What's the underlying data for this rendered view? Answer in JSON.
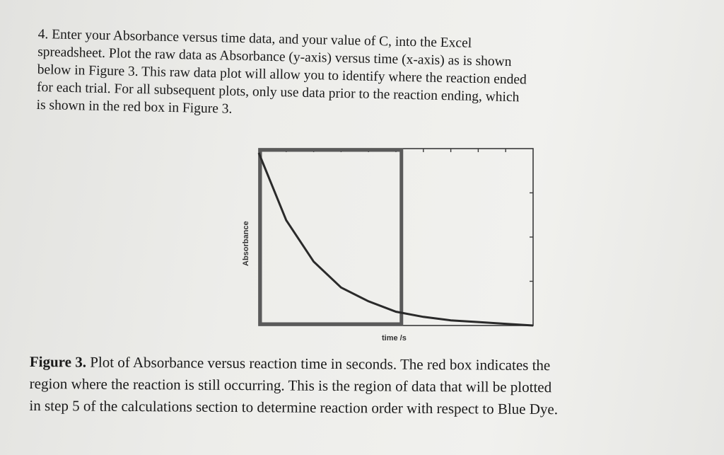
{
  "instructions": {
    "line1": "4. Enter your Absorbance versus time data, and your value of C, into the Excel",
    "line2": "spreadsheet. Plot the raw data as Absorbance (y-axis) versus time (x-axis) as is shown",
    "line3": "below in Figure 3. This raw data plot will allow you to identify where the reaction ended",
    "line4": "for each trial. For all subsequent plots, only use data prior to the reaction ending, which",
    "line5": "is shown in the red box in Figure 3."
  },
  "figure": {
    "ylabel": "Absorbance",
    "xlabel": "time /s",
    "colors": {
      "curve": "#2a2a2a",
      "highlight_box": "#5a5a5a",
      "axes": "#3a3a3a"
    }
  },
  "chart_data": {
    "type": "line",
    "title": "",
    "xlabel": "time /s",
    "ylabel": "Absorbance",
    "series": [
      {
        "x": [
          0,
          0.1,
          0.2,
          0.3,
          0.4,
          0.5,
          0.6,
          0.7,
          0.8,
          0.9,
          1.0
        ],
        "y": [
          1.0,
          0.61,
          0.37,
          0.22,
          0.14,
          0.08,
          0.05,
          0.03,
          0.02,
          0.01,
          0.0
        ]
      }
    ],
    "xlim": [
      0,
      1
    ],
    "ylim": [
      0,
      1
    ],
    "highlight_region": {
      "x": [
        0,
        0.52
      ]
    },
    "grid": false
  },
  "caption": {
    "label": "Figure 3.",
    "line1": " Plot of Absorbance versus reaction time in seconds. The red box indicates the",
    "line2": "region where the reaction is still occurring. This is the region of data that will be plotted",
    "line3": "in step 5 of the calculations section to determine reaction order with respect to Blue Dye."
  }
}
